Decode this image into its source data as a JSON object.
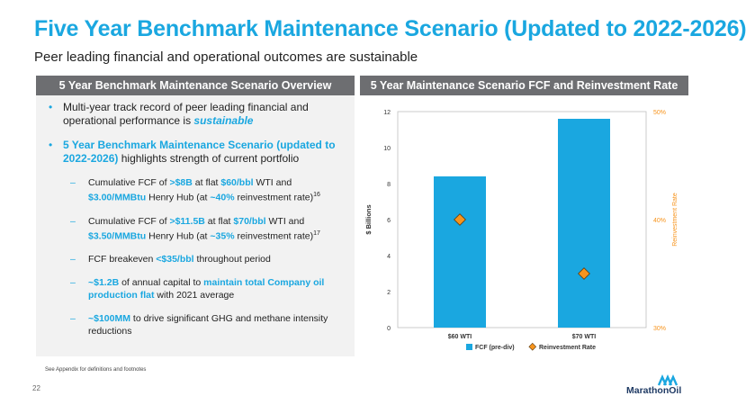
{
  "header": {
    "title": "Five Year Benchmark Maintenance Scenario (Updated to 2022-2026)",
    "subtitle": "Peer leading financial and operational outcomes are sustainable"
  },
  "left_panel": {
    "heading": "5 Year Benchmark Maintenance Scenario Overview",
    "bullet1": {
      "text": "Multi-year track record of peer leading financial and operational performance is ",
      "emphasis": "sustainable"
    },
    "bullet2": {
      "highlight": "5 Year Benchmark Maintenance Scenario (updated to 2022-2026)",
      "text": " highlights strength of current portfolio"
    },
    "sub1": {
      "p1": "Cumulative FCF of ",
      "h1": ">$8B",
      "p2": " at flat ",
      "h2": "$60/bbl",
      "p3": " WTI and ",
      "h3": "$3.00/MMBtu",
      "p4": " Henry Hub (at ",
      "h4": "~40%",
      "p5": " reinvestment rate)",
      "sup": "16"
    },
    "sub2": {
      "p1": "Cumulative FCF of ",
      "h1": ">$11.5B",
      "p2": " at flat ",
      "h2": "$70/bbl",
      "p3": " WTI and ",
      "h3": "$3.50/MMBtu",
      "p4": " Henry Hub  (at ",
      "h4": "~35%",
      "p5": " reinvestment rate)",
      "sup": "17"
    },
    "sub3": {
      "p1": "FCF breakeven ",
      "h1": "<$35/bbl",
      "p2": " throughout period"
    },
    "sub4": {
      "h1": "~$1.2B",
      "p1": " of annual capital to ",
      "h2": "maintain total Company oil production flat",
      "p2": " with 2021 average"
    },
    "sub5": {
      "h1": "~$100MM",
      "p1": " to drive significant GHG and methane intensity reductions"
    }
  },
  "right_panel": {
    "heading": "5 Year Maintenance Scenario FCF and Reinvestment Rate"
  },
  "chart_data": {
    "type": "bar",
    "categories": [
      "$60 WTI",
      "$70 WTI"
    ],
    "series": [
      {
        "name": "FCF (pre-div)",
        "kind": "bar",
        "axis": "left",
        "values": [
          8.4,
          11.6
        ],
        "color": "#1aa7e0"
      },
      {
        "name": "Reinvestment Rate",
        "kind": "marker",
        "axis": "right",
        "values": [
          40,
          35
        ],
        "color": "#f7941d"
      }
    ],
    "ylabel": "$ Billions",
    "ylim": [
      0,
      12
    ],
    "yticks": [
      "0",
      "2",
      "4",
      "6",
      "8",
      "10",
      "12"
    ],
    "y2label": "Reinvestment Rate",
    "y2lim": [
      30,
      50
    ],
    "y2ticks": [
      "30%",
      "40%",
      "50%"
    ],
    "grid": false,
    "legend": "bottom"
  },
  "footer": {
    "footnote": "See Appendix for definitions and footnotes",
    "page_number": "22",
    "logo_text": "MarathonOil"
  },
  "colors": {
    "accent": "#1aa7e0",
    "orange": "#f7941d",
    "header_gray": "#6d6e71",
    "panel_bg": "#f2f2f2",
    "navy": "#1f3a64"
  }
}
